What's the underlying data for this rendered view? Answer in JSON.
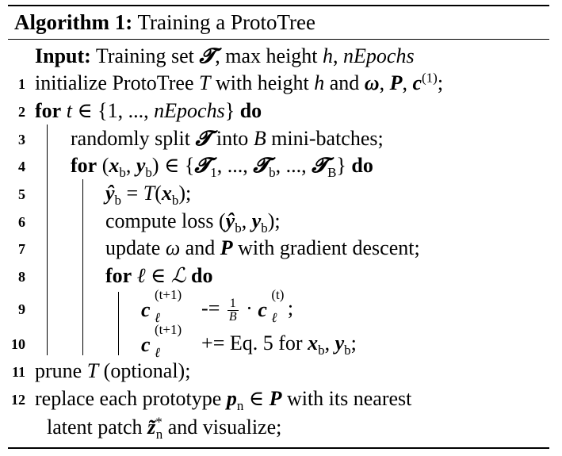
{
  "algorithm": {
    "label": "Algorithm 1:",
    "title": "Training a ProtoTree",
    "input_label": "Input:",
    "input_text": "Training set 𝓣, max height h, nEpochs",
    "lines": [
      {
        "num": "1",
        "text": "initialize ProtoTree T with height h and ω, P, c(1);"
      },
      {
        "num": "2",
        "keyword": "for",
        "text": "t ∈ {1, ..., nEpochs}",
        "keyword_end": "do"
      },
      {
        "num": "3",
        "text": "randomly split 𝓣 into B mini-batches;"
      },
      {
        "num": "4",
        "keyword": "for",
        "text": "(xb, yb) ∈ {𝓣1, ..., 𝓣b, ..., 𝓣B}",
        "keyword_end": "do"
      },
      {
        "num": "5",
        "text": "ŷb = T(xb);"
      },
      {
        "num": "6",
        "text": "compute loss (ŷb, yb);"
      },
      {
        "num": "7",
        "text": "update ω and P with gradient descent;"
      },
      {
        "num": "8",
        "keyword": "for",
        "text": "ℓ ∈ ℒ",
        "keyword_end": "do"
      },
      {
        "num": "9",
        "text": "cℓ(t+1) -= 1/B · cℓ(t);"
      },
      {
        "num": "10",
        "text": "cℓ(t+1) += Eq. 5 for xb, yb;"
      },
      {
        "num": "11",
        "text": "prune T (optional);"
      },
      {
        "num": "12",
        "text": "replace each prototype pn ∈ P with its nearest",
        "continuation": "latent patch z̃*n and visualize;"
      }
    ]
  }
}
